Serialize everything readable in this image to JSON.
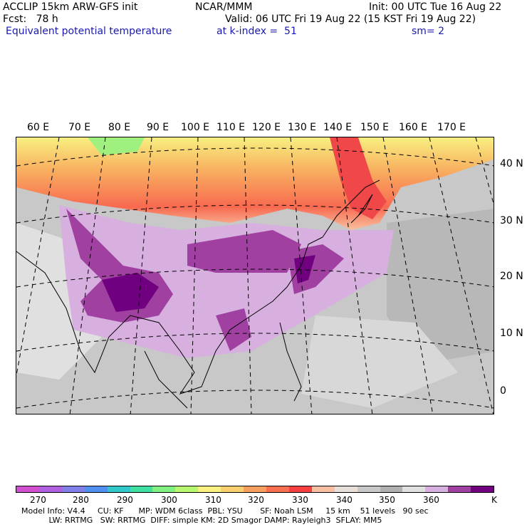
{
  "header": {
    "line1_left": "ACCLIP 15km ARW-GFS init",
    "line1_mid": "NCAR/MMM",
    "line1_right": "Init: 00 UTC Tue 16 Aug 22",
    "line2_left": "Fcst:   78 h",
    "line2_right": "Valid: 06 UTC Fri 19 Aug 22 (15 KST Fri 19 Aug 22)",
    "line3_left": "Equivalent potential temperature",
    "line3_mid": "at k-index =  51",
    "line3_right": "sm= 2"
  },
  "map": {
    "lon_labels": [
      "60 E",
      "70 E",
      "80 E",
      "90 E",
      "100 E",
      "110 E",
      "120 E",
      "130 E",
      "140 E",
      "150 E",
      "160 E",
      "170 E"
    ],
    "lat_labels": [
      "40 N",
      "30 N",
      "20 N",
      "10 N",
      "0"
    ]
  },
  "colorbar": {
    "colors": [
      "#d050d0",
      "#b060e0",
      "#8080e8",
      "#5090f0",
      "#30c8c8",
      "#40e0a0",
      "#80f080",
      "#b8f870",
      "#f8f080",
      "#f8d070",
      "#f8a060",
      "#f87050",
      "#f84040",
      "#f8c0a0",
      "#e8e0d8",
      "#c8c8c8",
      "#b0b0b0",
      "#e0e0e0",
      "#d8b0e0",
      "#a040a0",
      "#700080"
    ],
    "labels": [
      "270",
      "280",
      "290",
      "300",
      "310",
      "320",
      "330",
      "340",
      "350",
      "360",
      "K"
    ]
  },
  "footer": {
    "line1": "Model Info: V4.4     CU: KF      MP: WDM 6class  PBL: YSU       SF: Noah LSM     15 km    51 levels   90 sec",
    "line2": "           LW: RRTMG   SW: RRTMG  DIFF: simple KM: 2D Smagor DAMP: Rayleigh3  SFLAY: MM5"
  }
}
